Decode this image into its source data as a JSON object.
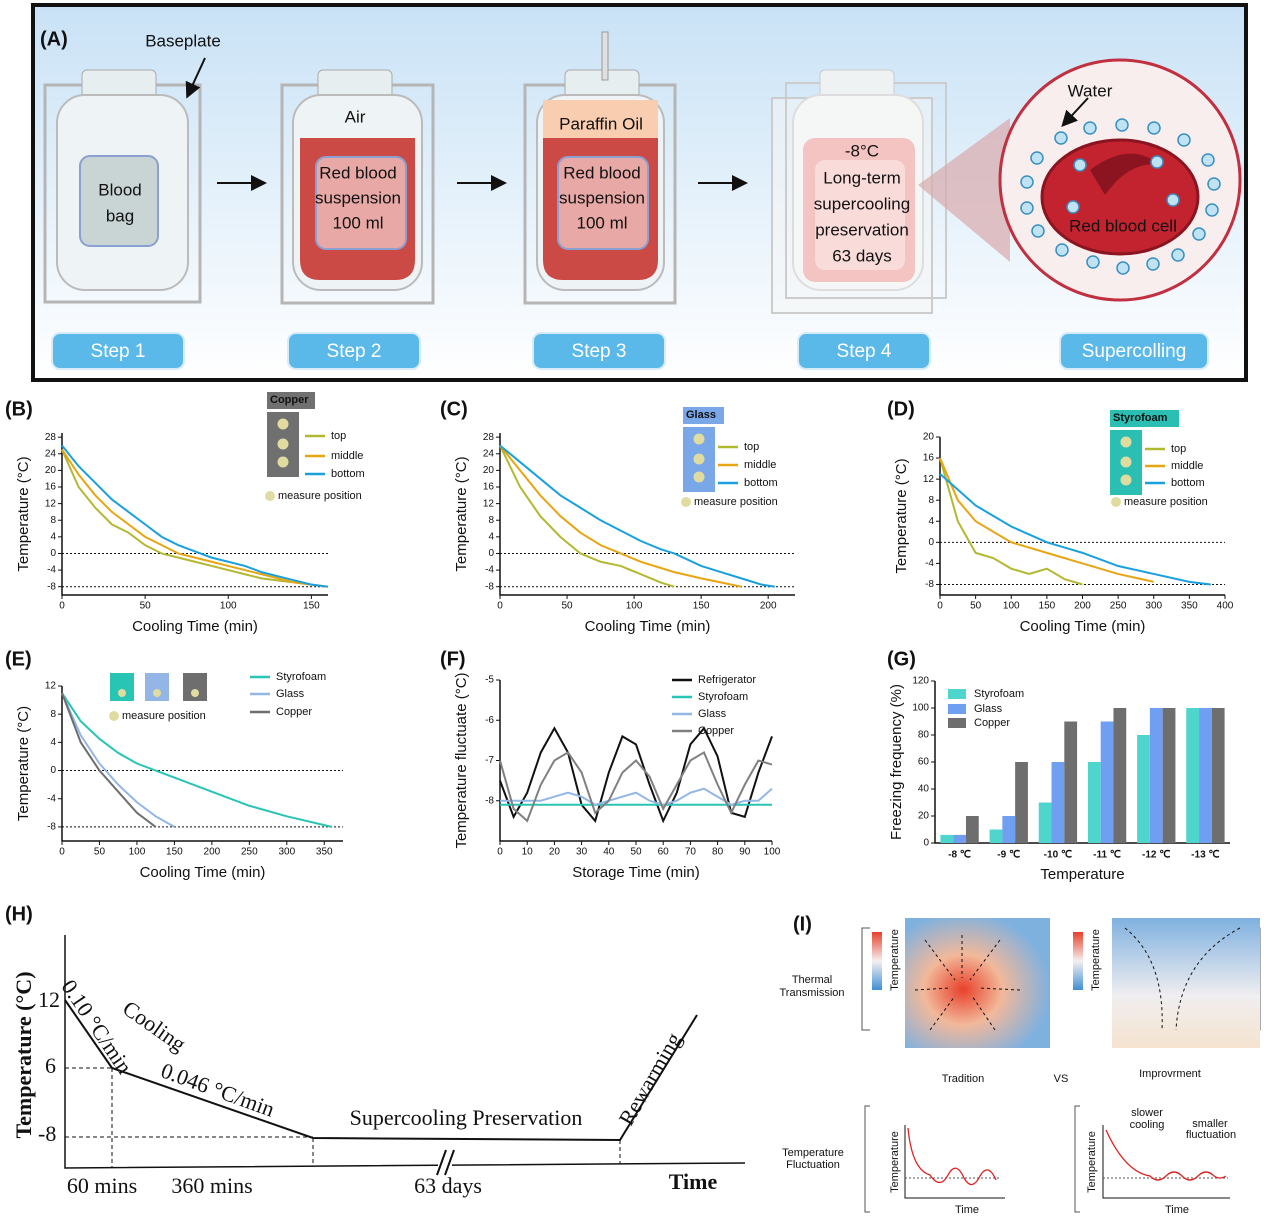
{
  "panel_a": {
    "label": "(A)",
    "baseplate": "Baseplate",
    "bag": [
      "Blood",
      "bag"
    ],
    "air": "Air",
    "suspension": [
      "Red blood",
      "suspension",
      "100 ml"
    ],
    "paraffin": "Paraffin Oil",
    "preservation": [
      "-8°C",
      "Long-term",
      "supercooling",
      "preservation",
      "63 days"
    ],
    "water": "Water",
    "cell": "Red blood cell",
    "steps": [
      "Step 1",
      "Step 2",
      "Step 3",
      "Step 4",
      "Supercolling"
    ]
  },
  "chart_data": [
    {
      "type": "line",
      "panel": "(B)",
      "xlabel": "Cooling  Time (min)",
      "ylabel": "Temperature (°C)",
      "legend_title": "Copper",
      "legend_title_color": "#707070",
      "note": "measure position",
      "x": [
        0,
        10,
        20,
        30,
        40,
        50,
        60,
        70,
        80,
        90,
        100,
        110,
        120,
        130,
        140,
        150,
        160
      ],
      "xlim": [
        0,
        160
      ],
      "xticks": [
        0,
        50,
        100,
        150
      ],
      "ylim": [
        -10,
        29
      ],
      "yticks": [
        -8,
        -4,
        0,
        4,
        8,
        12,
        16,
        20,
        24,
        28
      ],
      "reference_lines": [
        0,
        -8
      ],
      "series": [
        {
          "name": "top",
          "color": "#b3b831",
          "values": [
            25,
            16,
            11,
            7,
            5,
            2,
            0,
            -1,
            -2,
            -3,
            -4,
            -5,
            -6,
            -6.5,
            -7,
            -7.5,
            -8
          ]
        },
        {
          "name": "middle",
          "color": "#e8a512",
          "values": [
            25,
            19,
            14,
            10,
            7,
            4,
            2,
            0,
            -1,
            -2,
            -3,
            -4,
            -5,
            -6,
            -7,
            -7.5,
            -8
          ]
        },
        {
          "name": "bottom",
          "color": "#1aa0dd",
          "values": [
            26,
            21,
            17,
            13,
            10,
            7,
            4,
            2,
            0.5,
            -1,
            -2,
            -3,
            -4.5,
            -5.5,
            -6.5,
            -7.5,
            -8
          ]
        }
      ]
    },
    {
      "type": "line",
      "panel": "(C)",
      "xlabel": "Cooling  Time (min)",
      "ylabel": "Temperature (°C)",
      "legend_title": "Glass",
      "legend_title_color": "#7aa7e8",
      "note": "measure position",
      "x": [
        0,
        15,
        30,
        45,
        60,
        75,
        90,
        105,
        120,
        130,
        150,
        165,
        180,
        195,
        205
      ],
      "xlim": [
        0,
        220
      ],
      "xticks": [
        0,
        50,
        100,
        150,
        200
      ],
      "ylim": [
        -10,
        29
      ],
      "yticks": [
        -8,
        -4,
        0,
        4,
        8,
        12,
        16,
        20,
        24,
        28
      ],
      "reference_lines": [
        0,
        -8
      ],
      "series": [
        {
          "name": "top",
          "color": "#b3b831",
          "values": [
            26,
            16,
            9,
            4,
            0,
            -2,
            -3,
            -5,
            -7,
            -8,
            null,
            null,
            null,
            null,
            null
          ]
        },
        {
          "name": "middle",
          "color": "#e8a512",
          "values": [
            26,
            20,
            14,
            9,
            5,
            2,
            0,
            -2,
            -3.5,
            -4.5,
            -6,
            -7,
            -8,
            null,
            null
          ]
        },
        {
          "name": "bottom",
          "color": "#1aa0dd",
          "values": [
            26,
            22,
            18,
            14,
            11,
            8,
            5.5,
            3,
            1,
            0,
            -3,
            -4.5,
            -6,
            -7.5,
            -8
          ]
        }
      ]
    },
    {
      "type": "line",
      "panel": "(D)",
      "xlabel": "Cooling  Time (min)",
      "ylabel": "Temperature (°C)",
      "legend_title": "Styrofoam",
      "legend_title_color": "#2bbfb3",
      "note": "measure position",
      "x": [
        0,
        25,
        50,
        75,
        100,
        125,
        150,
        175,
        200,
        250,
        300,
        350,
        380
      ],
      "xlim": [
        0,
        400
      ],
      "xticks": [
        0,
        50,
        100,
        150,
        200,
        250,
        300,
        350,
        400
      ],
      "ylim": [
        -10,
        20
      ],
      "yticks": [
        -8,
        -4,
        0,
        4,
        8,
        12,
        16,
        20
      ],
      "reference_lines": [
        0,
        -8
      ],
      "series": [
        {
          "name": "top",
          "color": "#b3b831",
          "values": [
            16,
            4,
            -2,
            -3,
            -5,
            -6,
            -5,
            -7,
            -8,
            null,
            null,
            null,
            null
          ]
        },
        {
          "name": "middle",
          "color": "#e8a512",
          "values": [
            16,
            8,
            4,
            2,
            0,
            -1,
            -2,
            -3,
            -4,
            -6,
            -7.5,
            null,
            null
          ]
        },
        {
          "name": "bottom",
          "color": "#1aa0dd",
          "values": [
            13,
            10,
            7,
            5,
            3,
            1.5,
            0,
            -1,
            -2,
            -4.5,
            -6,
            -7.5,
            -8
          ]
        }
      ]
    },
    {
      "type": "line",
      "panel": "(E)",
      "xlabel": "Cooling Time (min)",
      "ylabel": "Temperature (°C)",
      "note": "measure position",
      "x": [
        0,
        25,
        50,
        75,
        100,
        125,
        150,
        200,
        250,
        300,
        360
      ],
      "xlim": [
        0,
        375
      ],
      "xticks": [
        0,
        50,
        100,
        150,
        200,
        250,
        300,
        350
      ],
      "ylim": [
        -10,
        12
      ],
      "yticks": [
        -8,
        -4,
        0,
        4,
        8,
        12
      ],
      "reference_lines": [
        0,
        -8
      ],
      "series": [
        {
          "name": "Styrofoam",
          "color": "#28c4b4",
          "values": [
            11,
            7,
            4.5,
            2.5,
            1,
            0,
            -1,
            -3,
            -5,
            -6.5,
            -8
          ]
        },
        {
          "name": "Glass",
          "color": "#93b6e6",
          "values": [
            11,
            5,
            1,
            -2,
            -4.5,
            -6.5,
            -8,
            null,
            null,
            null,
            null
          ]
        },
        {
          "name": "Copper",
          "color": "#6e6e6e",
          "values": [
            11,
            4,
            0,
            -3,
            -6,
            -8,
            null,
            null,
            null,
            null,
            null
          ]
        }
      ]
    },
    {
      "type": "line",
      "panel": "(F)",
      "xlabel": "Storage Time (min)",
      "ylabel": "Temperature fluctuate (°C)",
      "x": [
        0,
        5,
        10,
        15,
        20,
        25,
        30,
        35,
        40,
        45,
        50,
        55,
        60,
        65,
        70,
        75,
        80,
        85,
        90,
        95,
        100
      ],
      "xlim": [
        0,
        100
      ],
      "xticks": [
        0,
        10,
        20,
        30,
        40,
        50,
        60,
        70,
        80,
        90,
        100
      ],
      "ylim": [
        -9,
        -5
      ],
      "yticks": [
        -8,
        -7,
        -6,
        -5
      ],
      "series": [
        {
          "name": "Refrigerator",
          "color": "#111111",
          "values": [
            -7.5,
            -8.4,
            -7.8,
            -6.8,
            -6.2,
            -6.8,
            -8.1,
            -8.5,
            -7.3,
            -6.4,
            -6.6,
            -7.6,
            -8.5,
            -7.8,
            -6.6,
            -6.2,
            -6.9,
            -8.3,
            -8.4,
            -7.3,
            -6.4
          ]
        },
        {
          "name": "Styrofoam",
          "color": "#28c4b4",
          "values": [
            -8.1,
            -8.1,
            -8.1,
            -8.1,
            -8.1,
            -8.1,
            -8.1,
            -8.1,
            -8.1,
            -8.1,
            -8.1,
            -8.1,
            -8.1,
            -8.1,
            -8.1,
            -8.1,
            -8.1,
            -8.1,
            -8.1,
            -8.1,
            -8.1
          ]
        },
        {
          "name": "Glass",
          "color": "#93b6e6",
          "values": [
            -8,
            -8,
            -8,
            -8,
            -7.9,
            -7.8,
            -7.9,
            -8.1,
            -8,
            -7.9,
            -7.8,
            -8,
            -8.1,
            -8,
            -7.8,
            -7.7,
            -7.9,
            -8.1,
            -8,
            -8,
            -7.7
          ]
        },
        {
          "name": "Copper",
          "color": "#808080",
          "values": [
            -7,
            -8.2,
            -8.5,
            -7.6,
            -7,
            -6.8,
            -7.3,
            -8.3,
            -8,
            -7.3,
            -7,
            -7.4,
            -8.2,
            -7.6,
            -7,
            -6.8,
            -7.6,
            -8.3,
            -7.6,
            -7,
            -7.1
          ]
        }
      ]
    },
    {
      "type": "bar",
      "panel": "(G)",
      "xlabel": "Temperature",
      "ylabel": "Freezing frequency (%)",
      "categories": [
        "-8 ℃",
        "-9 ℃",
        "-10 ℃",
        "-11 ℃",
        "-12 ℃",
        "-13 ℃"
      ],
      "ylim": [
        0,
        120
      ],
      "yticks": [
        0,
        20,
        40,
        60,
        80,
        100,
        120
      ],
      "series": [
        {
          "name": "Styrofoam",
          "color": "#4fd6cc",
          "values": [
            6,
            10,
            30,
            60,
            80,
            100
          ]
        },
        {
          "name": "Glass",
          "color": "#6f9ff0",
          "values": [
            6,
            20,
            60,
            90,
            100,
            100
          ]
        },
        {
          "name": "Copper",
          "color": "#6e6e6e",
          "values": [
            20,
            60,
            90,
            100,
            100,
            100
          ]
        }
      ]
    }
  ],
  "panel_h": {
    "label": "(H)",
    "ylabel": "Temperature (°C)",
    "xlabel": "Time",
    "y_marks": [
      12,
      6,
      -8
    ],
    "x_marks": [
      "60 mins",
      "360 mins",
      "63 days"
    ],
    "rate1": "0.10 °C/min",
    "rate2": "0.046 °C/min",
    "cooling": "Cooling",
    "preservation": "Supercooling Preservation",
    "rewarming": "Rewarming"
  },
  "panel_i": {
    "label": "(I)",
    "thermal": [
      "Thermal",
      "Transmission"
    ],
    "axis": "Temperature",
    "tradition": "Tradition",
    "vs": "VS",
    "improvement": "Improvrment",
    "fluctuation": [
      "Temperature",
      "Fluctuation"
    ],
    "slower": [
      "slower",
      "cooling"
    ],
    "smaller": [
      "smaller",
      "fluctuation"
    ],
    "time": "Time"
  }
}
